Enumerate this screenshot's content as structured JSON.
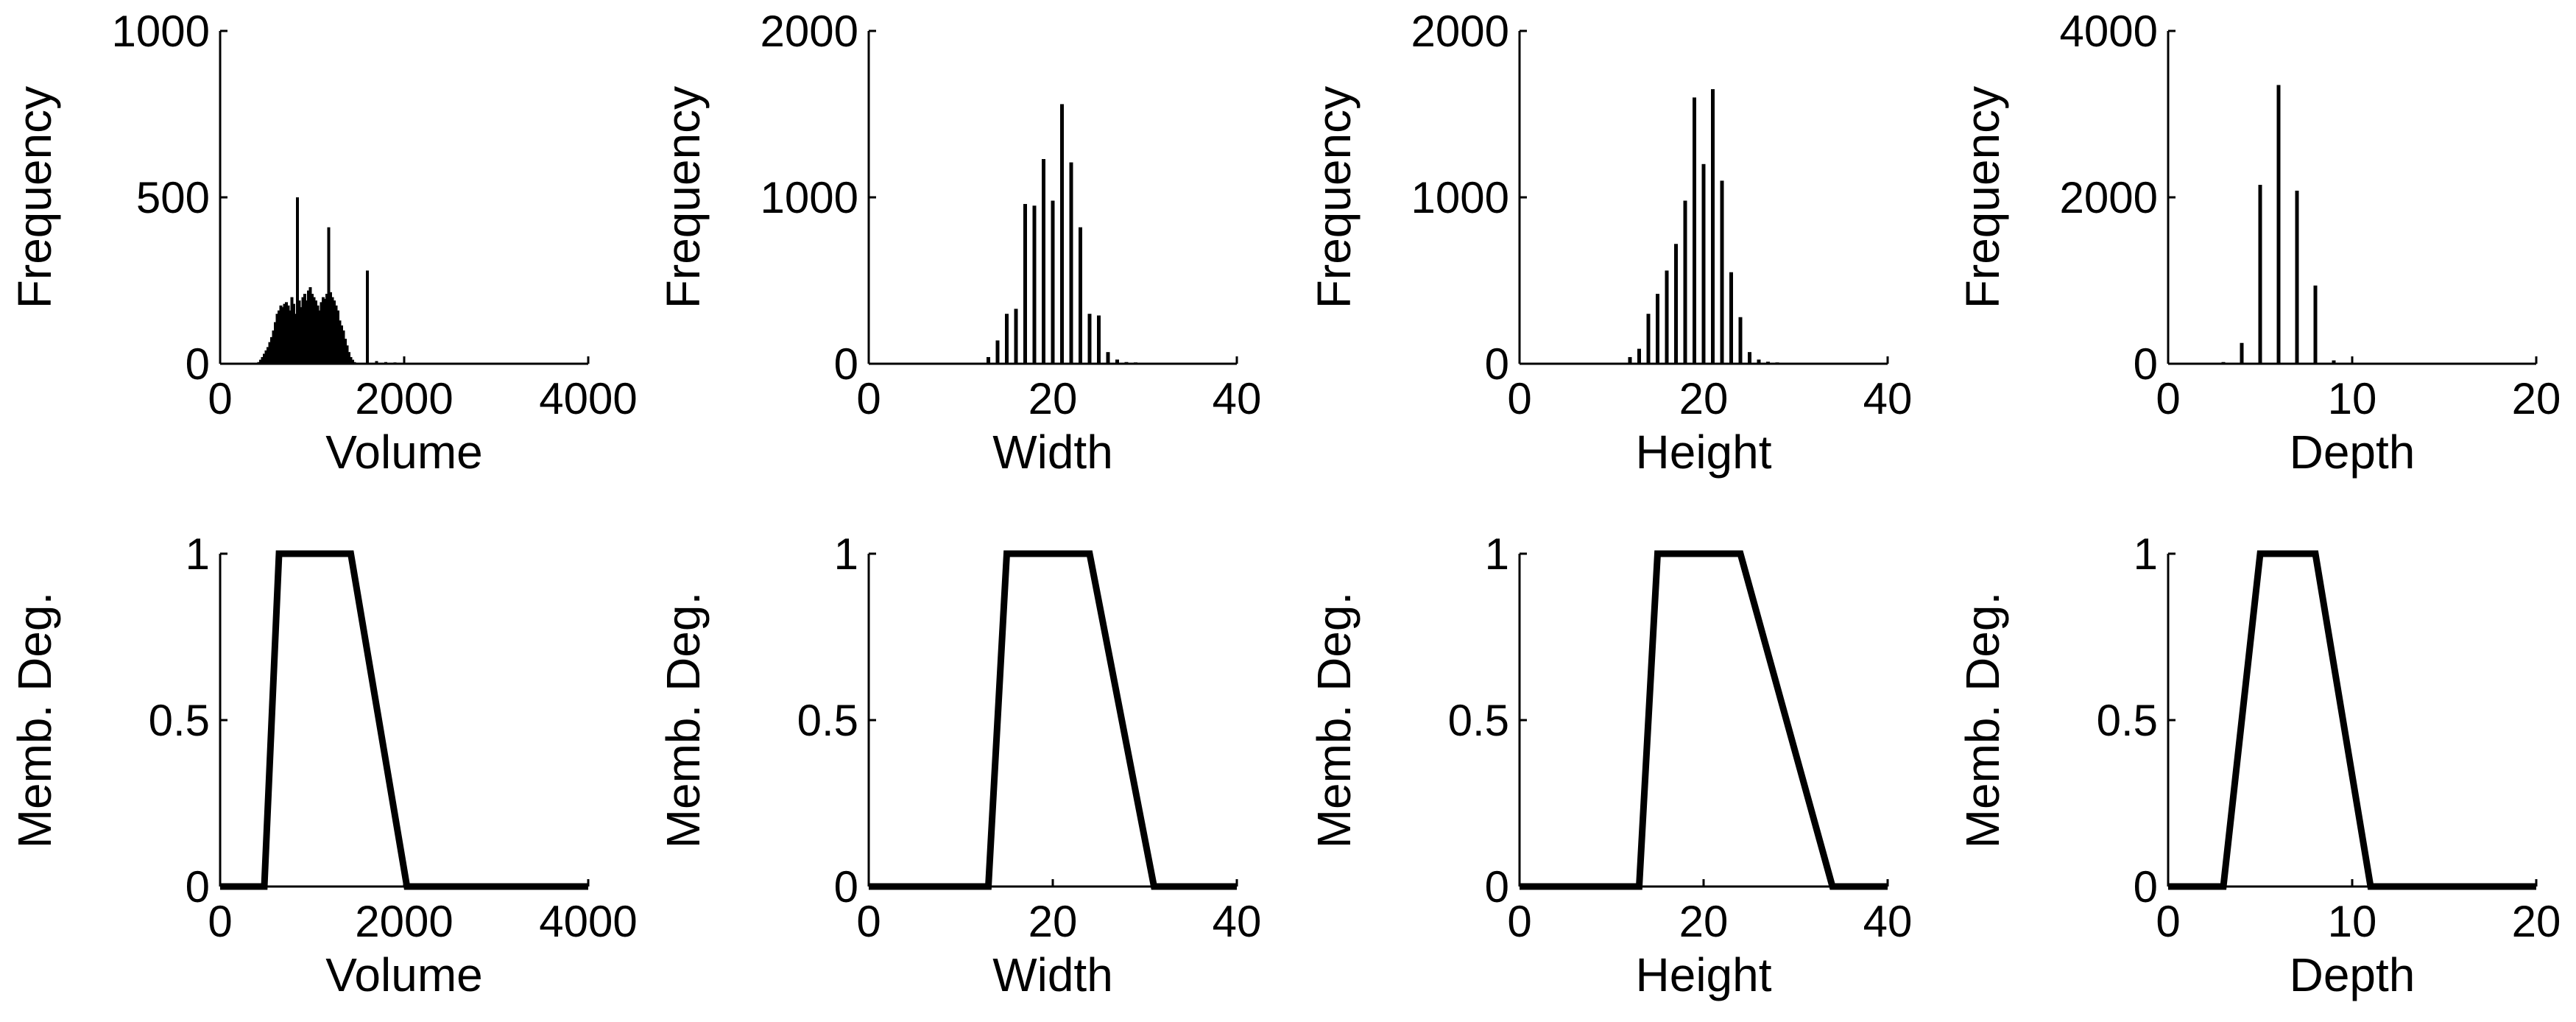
{
  "chart_data": [
    {
      "type": "bar",
      "id": "volume-histogram",
      "title": "",
      "xlabel": "Volume",
      "ylabel": "Frequency",
      "xlim": [
        0,
        4000
      ],
      "ylim": [
        0,
        1000
      ],
      "xticks": [
        "0",
        "2000",
        "4000"
      ],
      "yticks": [
        "0",
        "500",
        "1000"
      ],
      "grid": false,
      "bar_style": "thin",
      "x": [
        420,
        440,
        460,
        480,
        500,
        520,
        540,
        560,
        580,
        600,
        620,
        640,
        660,
        680,
        700,
        720,
        740,
        760,
        780,
        800,
        820,
        840,
        860,
        880,
        900,
        920,
        940,
        960,
        980,
        1000,
        1020,
        1040,
        1060,
        1080,
        1100,
        1120,
        1140,
        1160,
        1180,
        1200,
        1220,
        1240,
        1260,
        1280,
        1300,
        1320,
        1340,
        1360,
        1380,
        1400,
        1420,
        1440,
        1460,
        1600,
        1700,
        1800,
        1900,
        2000
      ],
      "values": [
        5,
        12,
        20,
        30,
        40,
        50,
        65,
        80,
        100,
        125,
        150,
        160,
        175,
        170,
        180,
        185,
        175,
        160,
        200,
        180,
        150,
        500,
        190,
        170,
        200,
        210,
        190,
        220,
        230,
        210,
        200,
        190,
        175,
        160,
        185,
        200,
        195,
        210,
        410,
        215,
        200,
        190,
        175,
        160,
        130,
        115,
        100,
        75,
        55,
        35,
        20,
        12,
        5,
        280,
        8,
        5,
        4,
        3
      ]
    },
    {
      "type": "bar",
      "id": "width-histogram",
      "title": "",
      "xlabel": "Width",
      "ylabel": "Frequency",
      "xlim": [
        0,
        40
      ],
      "ylim": [
        0,
        2000
      ],
      "xticks": [
        "0",
        "20",
        "40"
      ],
      "yticks": [
        "0",
        "1000",
        "2000"
      ],
      "grid": false,
      "bar_style": "line",
      "x": [
        13,
        14,
        15,
        16,
        17,
        18,
        19,
        20,
        21,
        22,
        23,
        24,
        25,
        26,
        27,
        28,
        29,
        30,
        31
      ],
      "values": [
        40,
        140,
        300,
        330,
        960,
        950,
        1230,
        980,
        1560,
        1210,
        820,
        300,
        290,
        70,
        25,
        10,
        8,
        5,
        3
      ]
    },
    {
      "type": "bar",
      "id": "height-histogram",
      "title": "",
      "xlabel": "Height",
      "ylabel": "Frequency",
      "xlim": [
        0,
        40
      ],
      "ylim": [
        0,
        2000
      ],
      "xticks": [
        "0",
        "20",
        "40"
      ],
      "yticks": [
        "0",
        "1000",
        "2000"
      ],
      "grid": false,
      "bar_style": "line",
      "x": [
        12,
        13,
        14,
        15,
        16,
        17,
        18,
        19,
        20,
        21,
        22,
        23,
        24,
        25,
        26,
        27,
        28,
        29,
        30
      ],
      "values": [
        40,
        90,
        300,
        420,
        560,
        720,
        980,
        1600,
        1200,
        1650,
        1100,
        550,
        280,
        70,
        25,
        12,
        8,
        5,
        3
      ]
    },
    {
      "type": "bar",
      "id": "depth-histogram",
      "title": "",
      "xlabel": "Depth",
      "ylabel": "Frequency",
      "xlim": [
        0,
        20
      ],
      "ylim": [
        0,
        4000
      ],
      "xticks": [
        "0",
        "10",
        "20"
      ],
      "yticks": [
        "0",
        "2000",
        "4000"
      ],
      "grid": false,
      "bar_style": "line",
      "x": [
        3,
        4,
        5,
        6,
        7,
        8,
        9,
        10,
        11
      ],
      "values": [
        20,
        250,
        2150,
        3350,
        2080,
        940,
        40,
        10,
        5
      ]
    },
    {
      "type": "line",
      "id": "volume-membership",
      "title": "",
      "xlabel": "Volume",
      "ylabel": "Memb. Deg.",
      "xlim": [
        0,
        4000
      ],
      "ylim": [
        0,
        1
      ],
      "xticks": [
        "0",
        "2000",
        "4000"
      ],
      "yticks": [
        "0",
        "0.5",
        "1"
      ],
      "grid": false,
      "x": [
        0,
        480,
        640,
        1420,
        2030,
        4000
      ],
      "values": [
        0,
        0,
        1,
        1,
        0,
        0
      ]
    },
    {
      "type": "line",
      "id": "width-membership",
      "title": "",
      "xlabel": "Width",
      "ylabel": "Memb. Deg.",
      "xlim": [
        0,
        40
      ],
      "ylim": [
        0,
        1
      ],
      "xticks": [
        "0",
        "20",
        "40"
      ],
      "yticks": [
        "0",
        "0.5",
        "1"
      ],
      "grid": false,
      "x": [
        0,
        13,
        15,
        24,
        31,
        40
      ],
      "values": [
        0,
        0,
        1,
        1,
        0,
        0
      ]
    },
    {
      "type": "line",
      "id": "height-membership",
      "title": "",
      "xlabel": "Height",
      "ylabel": "Memb. Deg.",
      "xlim": [
        0,
        40
      ],
      "ylim": [
        0,
        1
      ],
      "xticks": [
        "0",
        "20",
        "40"
      ],
      "yticks": [
        "0",
        "0.5",
        "1"
      ],
      "grid": false,
      "x": [
        0,
        13,
        15,
        24,
        34,
        40
      ],
      "values": [
        0,
        0,
        1,
        1,
        0,
        0
      ]
    },
    {
      "type": "line",
      "id": "depth-membership",
      "title": "",
      "xlabel": "Depth",
      "ylabel": "Memb. Deg.",
      "xlim": [
        0,
        20
      ],
      "ylim": [
        0,
        1
      ],
      "xticks": [
        "0",
        "10",
        "20"
      ],
      "yticks": [
        "0",
        "0.5",
        "1"
      ],
      "grid": false,
      "x": [
        0,
        3,
        5,
        8,
        11,
        20
      ],
      "values": [
        0,
        0,
        1,
        1,
        0,
        0
      ]
    }
  ]
}
